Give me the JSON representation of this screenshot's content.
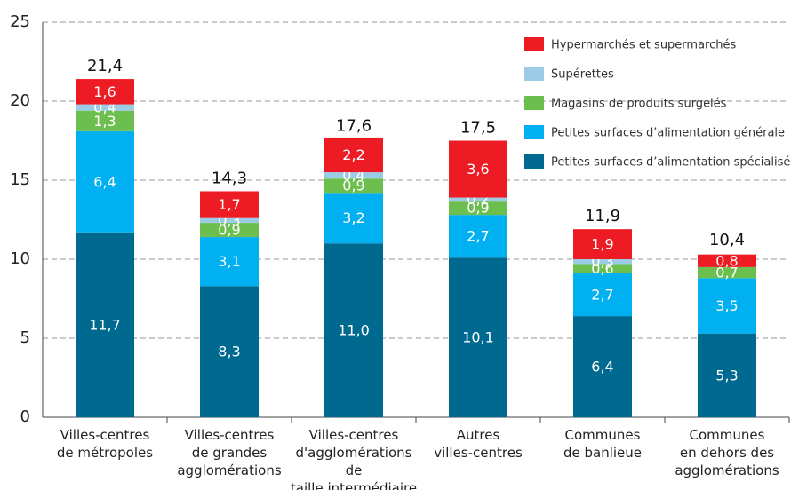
{
  "chart_data": {
    "type": "stacked_bar",
    "categories": [
      "Villes-centres\nde métropoles",
      "Villes-centres\nde grandes\nagglomérations",
      "Villes-centres\nd'agglomérations de\ntaille intermédiaire",
      "Autres\nvilles-centres",
      "Communes\nde banlieue",
      "Communes\nen dehors des\nagglomérations"
    ],
    "series": [
      {
        "name": "Petites surfaces d’alimentation spécialisée",
        "color": "#00698f",
        "values": [
          11.7,
          8.3,
          11.0,
          10.1,
          6.4,
          5.3
        ],
        "value_labels": [
          "11,7",
          "8,3",
          "11,0",
          "10,1",
          "6,4",
          "5,3"
        ]
      },
      {
        "name": "Petites surfaces d’alimentation générale",
        "color": "#00b0f0",
        "values": [
          6.4,
          3.1,
          3.2,
          2.7,
          2.7,
          3.5
        ],
        "value_labels": [
          "6,4",
          "3,1",
          "3,2",
          "2,7",
          "2,7",
          "3,5"
        ]
      },
      {
        "name": "Magasins de produits surgelés",
        "color": "#6cbf4e",
        "values": [
          1.3,
          0.9,
          0.9,
          0.9,
          0.6,
          0.7
        ],
        "value_labels": [
          "1,3",
          "0,9",
          "0,9",
          "0,9",
          "0,6",
          "0,7"
        ]
      },
      {
        "name": "Supérettes",
        "color": "#9ccbe6",
        "values": [
          0.4,
          0.3,
          0.4,
          0.2,
          0.3,
          null
        ],
        "value_labels": [
          "0,4",
          "0,3",
          "0,4",
          "0,2",
          "0,3",
          null
        ]
      },
      {
        "name": "Hypermarchés et supermarchés",
        "color": "#ed1c24",
        "values": [
          1.6,
          1.7,
          2.2,
          3.6,
          1.9,
          0.8
        ],
        "value_labels": [
          "1,6",
          "1,7",
          "2,2",
          "3,6",
          "1,9",
          "0,8"
        ]
      }
    ],
    "totals": [
      21.4,
      14.3,
      17.6,
      17.5,
      11.9,
      10.4
    ],
    "total_labels": [
      "21,4",
      "14,3",
      "17,6",
      "17,5",
      "11,9",
      "10,4"
    ],
    "ylim": [
      0,
      25
    ],
    "yticks": [
      0,
      5,
      10,
      15,
      20,
      25
    ],
    "grid": true,
    "legend": "top-right"
  }
}
